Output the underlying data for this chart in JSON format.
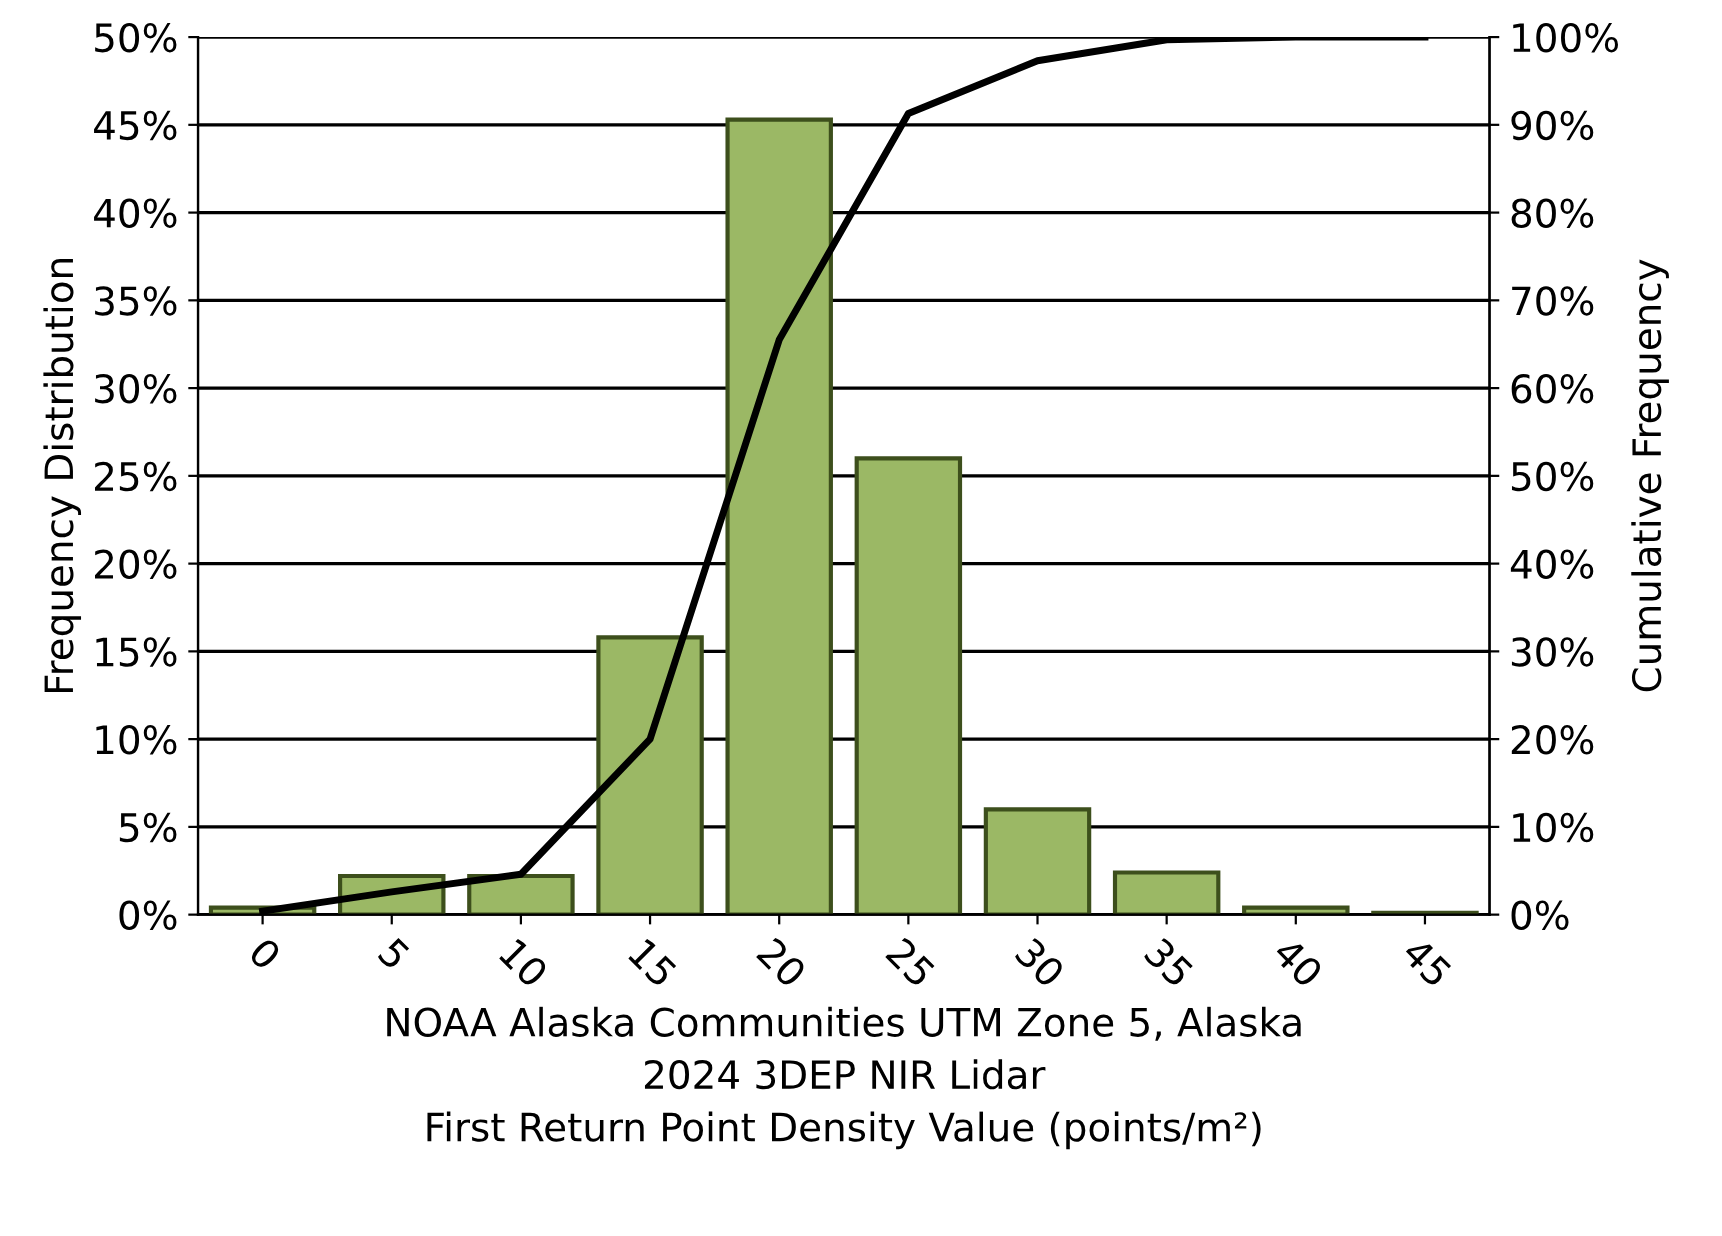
{
  "chart_data": {
    "type": "bar",
    "xlabel": "NOAA Alaska Communities UTM Zone 5, Alaska\n2024 3DEP NIR Lidar\nFirst Return Point Density Value (points/m²)",
    "ylabel": "Frequency Distribution",
    "y2label": "Cumulative Frequency",
    "categories": [
      "0",
      "5",
      "10",
      "15",
      "20",
      "25",
      "30",
      "35",
      "40",
      "45"
    ],
    "series": [
      {
        "color": "#9bb865",
        "values": [
          0.4,
          2.2,
          2.2,
          15.8,
          45.3,
          26.0,
          6.0,
          2.4,
          0.4,
          0.1
        ]
      },
      {
        "type": "line",
        "axis": "y2",
        "color": "#000000",
        "values": [
          0.4,
          2.6,
          4.6,
          20.0,
          65.5,
          91.3,
          97.3,
          99.7,
          100,
          100
        ]
      }
    ],
    "ylim": [
      0,
      50
    ],
    "yticks": [
      {
        "value": 0,
        "label": "0%"
      },
      {
        "value": 5,
        "label": "5%"
      },
      {
        "value": 10,
        "label": "10%"
      },
      {
        "value": 15,
        "label": "15%"
      },
      {
        "value": 20,
        "label": "20%"
      },
      {
        "value": 25,
        "label": "25%"
      },
      {
        "value": 30,
        "label": "30%"
      },
      {
        "value": 35,
        "label": "35%"
      },
      {
        "value": 40,
        "label": "40%"
      },
      {
        "value": 45,
        "label": "45%"
      },
      {
        "value": 50,
        "label": "50%"
      }
    ],
    "y2lim": [
      0,
      100
    ],
    "y2ticks": [
      {
        "value": 0,
        "label": "0%"
      },
      {
        "value": 10,
        "label": "10%"
      },
      {
        "value": 20,
        "label": "20%"
      },
      {
        "value": 30,
        "label": "30%"
      },
      {
        "value": 40,
        "label": "40%"
      },
      {
        "value": 50,
        "label": "50%"
      },
      {
        "value": 60,
        "label": "60%"
      },
      {
        "value": 70,
        "label": "70%"
      },
      {
        "value": 80,
        "label": "80%"
      },
      {
        "value": 90,
        "label": "90%"
      },
      {
        "value": 100,
        "label": "100%"
      }
    ],
    "grid": "y",
    "marker": "none",
    "line_style": "solid"
  }
}
